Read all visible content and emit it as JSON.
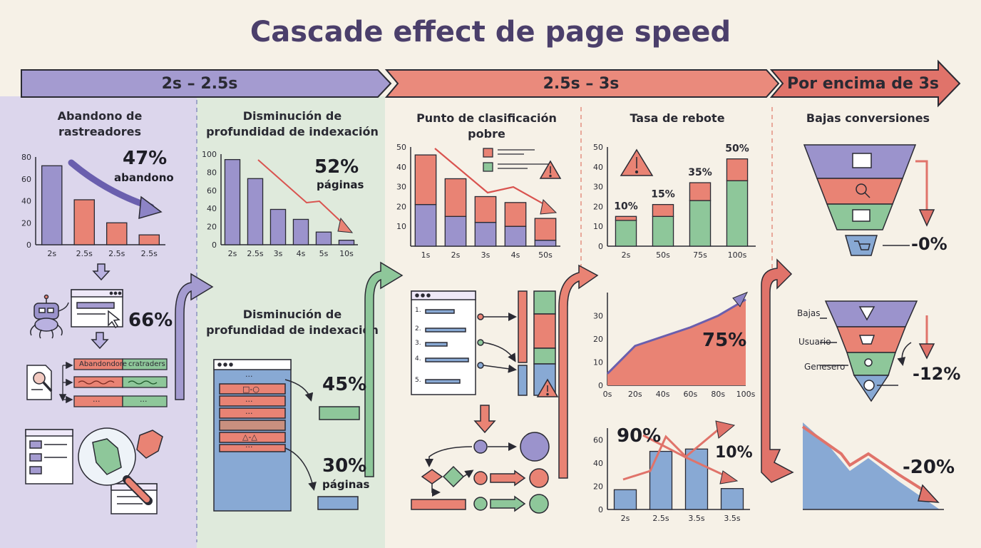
{
  "title": "Cascade effect de page speed",
  "timeline": [
    {
      "label": "2s – 2.5s",
      "color": "#a49bd0"
    },
    {
      "label": "2.5s – 3s",
      "color": "#ea8a7c"
    },
    {
      "label": "Por encima de 3s",
      "color": "#e0736a"
    }
  ],
  "panel1": {
    "title_line1": "Abandono de",
    "title_line2": "rastreadores",
    "stat_value": "47%",
    "stat_label": "abandono",
    "mid_stat": "66%",
    "table_head1": "Abandondore",
    "table_head2": "cratraders",
    "table_dots": "···"
  },
  "panel2": {
    "title_line1": "Disminución de",
    "title_line2": "profundidad de indexación",
    "stat_value": "52%",
    "stat_label": "páginas",
    "sub_title_line1": "Disminución de",
    "sub_title_line2": "profundidad de indexación",
    "stat2": "45%",
    "stat3_value": "30%",
    "stat3_label": "páginas",
    "list_marks": [
      "···",
      "□-○",
      "···",
      "···",
      "△-△",
      "···"
    ]
  },
  "panel3": {
    "title": "Punto de clasificación pobre",
    "list_numbers": [
      "1.",
      "2.",
      "3.",
      "4.",
      "5."
    ]
  },
  "panel4": {
    "title": "Tasa de rebote",
    "area_value": "75%",
    "line_label1": "90%",
    "line_label2": "10%"
  },
  "panel5": {
    "title": "Bajas conversiones",
    "funnel1_value": "-0%",
    "funnel2_labels": [
      "Bajas",
      "Usuario",
      "Genesero"
    ],
    "funnel2_value": "-12%",
    "area_value": "-20%"
  },
  "colors": {
    "purple": "#9b93cc",
    "coral": "#e98374",
    "green": "#8ec79a",
    "blue": "#88a9d4",
    "ink": "#2a2a33",
    "bg": "#f6f1e7"
  },
  "chart_data": [
    {
      "type": "bar",
      "categories": [
        "2s",
        "2.5s",
        "2.5s",
        "2.5s"
      ],
      "values": [
        72,
        41,
        20,
        9
      ],
      "ylim": [
        0,
        80
      ],
      "yticks": [
        0,
        20,
        40,
        60,
        80
      ]
    },
    {
      "type": "bar",
      "categories": [
        "2s",
        "2.5s",
        "3s",
        "4s",
        "5s",
        "10s"
      ],
      "values": [
        94,
        73,
        39,
        28,
        14,
        5
      ],
      "ylim": [
        0,
        100
      ],
      "yticks": [
        0,
        20,
        40,
        60,
        80,
        100
      ]
    },
    {
      "type": "bar",
      "stacked": true,
      "categories": [
        "1s",
        "2s",
        "3s",
        "4s",
        "50s"
      ],
      "series": [
        {
          "values": [
            21,
            15,
            12,
            10,
            3
          ]
        },
        {
          "values": [
            25,
            19,
            13,
            12,
            11
          ]
        }
      ],
      "ylim": [
        0,
        50
      ],
      "yticks": [
        10,
        20,
        30,
        40,
        50
      ]
    },
    {
      "type": "bar",
      "stacked": true,
      "categories": [
        "2s",
        "50s",
        "75s",
        "100s"
      ],
      "series": [
        {
          "values": [
            13,
            15,
            23,
            33
          ]
        },
        {
          "values": [
            2,
            6,
            9,
            11
          ]
        }
      ],
      "data_labels": [
        "10%",
        "15%",
        "35%",
        "50%"
      ],
      "ylim": [
        0,
        50
      ],
      "yticks": [
        0,
        10,
        20,
        30,
        40,
        50
      ]
    },
    {
      "type": "area",
      "x": [
        "0s",
        "20s",
        "40s",
        "60s",
        "80s",
        "100s"
      ],
      "values": [
        5,
        17,
        21,
        25,
        30,
        37
      ],
      "ylim": [
        0,
        40
      ],
      "yticks": [
        0,
        10,
        20,
        30
      ]
    },
    {
      "type": "bar",
      "categories": [
        "2s",
        "2.5s",
        "3.5s",
        "3.5s"
      ],
      "values": [
        17,
        50,
        52,
        18
      ],
      "ylim": [
        0,
        70
      ],
      "yticks": [
        0,
        20,
        40,
        60
      ]
    }
  ]
}
